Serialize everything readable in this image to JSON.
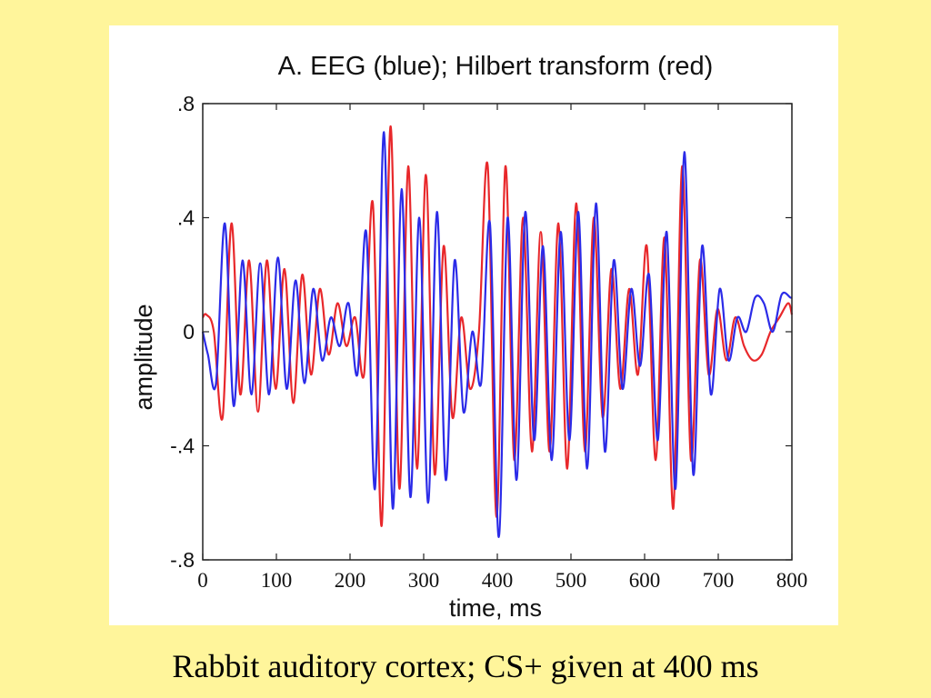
{
  "caption": "Rabbit auditory cortex; CS+ given at 400 ms",
  "chart_data": {
    "type": "line",
    "title": "A. EEG (blue);  Hilbert transform (red)",
    "xlabel": "time, ms",
    "ylabel": "amplitude",
    "xlim": [
      0,
      800
    ],
    "ylim": [
      -0.8,
      0.8
    ],
    "x_ticks": [
      0,
      100,
      200,
      300,
      400,
      500,
      600,
      700,
      800
    ],
    "x_tick_labels": [
      "0",
      "100",
      "200",
      "300",
      "400",
      "500",
      "600",
      "700",
      "800"
    ],
    "y_ticks": [
      0.8,
      0.4,
      0,
      -0.4,
      -0.8
    ],
    "y_tick_labels": [
      ".8",
      ".4",
      "0",
      "-.4",
      "-.8"
    ],
    "grid": false,
    "colors": {
      "eeg": "#2B2BE8",
      "hilbert": "#E8282B",
      "background": "#FFF59B"
    },
    "series": [
      {
        "key": "eeg",
        "color": "#2B2BE8",
        "x": [
          0,
          7,
          18,
          30,
          42,
          54,
          66,
          78,
          90,
          102,
          114,
          126,
          138,
          150,
          162,
          174,
          186,
          198,
          210,
          222,
          234,
          246,
          258,
          270,
          282,
          294,
          306,
          318,
          330,
          342,
          354,
          366,
          378,
          390,
          402,
          414,
          426,
          438,
          450,
          462,
          474,
          486,
          498,
          510,
          522,
          534,
          546,
          558,
          570,
          582,
          594,
          606,
          618,
          630,
          642,
          654,
          666,
          678,
          690,
          702,
          714,
          726,
          738,
          750,
          762,
          774,
          786,
          798,
          800
        ],
        "values": [
          0.0,
          -0.08,
          -0.18,
          0.38,
          -0.26,
          0.25,
          -0.22,
          0.24,
          -0.22,
          0.26,
          -0.2,
          0.18,
          -0.18,
          0.15,
          -0.1,
          0.05,
          -0.05,
          0.1,
          -0.15,
          0.35,
          -0.55,
          0.7,
          -0.62,
          0.5,
          -0.58,
          0.4,
          -0.6,
          0.42,
          -0.52,
          0.25,
          -0.28,
          0.0,
          -0.18,
          0.38,
          -0.72,
          0.4,
          -0.52,
          0.42,
          -0.38,
          0.3,
          -0.45,
          0.35,
          -0.38,
          0.42,
          -0.48,
          0.45,
          -0.42,
          0.25,
          -0.2,
          0.15,
          -0.12,
          0.2,
          -0.38,
          0.35,
          -0.55,
          0.63,
          -0.5,
          0.3,
          -0.22,
          0.15,
          -0.1,
          0.05,
          0.0,
          0.12,
          0.1,
          0.0,
          0.13,
          0.12,
          0.12
        ]
      },
      {
        "key": "hilbert",
        "color": "#E8282B",
        "x": [
          0,
          5,
          15,
          27,
          39,
          51,
          63,
          75,
          87,
          99,
          111,
          123,
          135,
          147,
          159,
          171,
          183,
          195,
          207,
          219,
          231,
          243,
          255,
          267,
          279,
          291,
          303,
          315,
          327,
          339,
          351,
          363,
          375,
          387,
          399,
          411,
          423,
          435,
          447,
          459,
          471,
          483,
          495,
          507,
          519,
          531,
          543,
          555,
          567,
          579,
          591,
          603,
          615,
          627,
          639,
          651,
          663,
          675,
          687,
          699,
          711,
          723,
          735,
          747,
          759,
          771,
          783,
          795,
          800
        ],
        "values": [
          0.05,
          0.06,
          0.0,
          -0.3,
          0.38,
          -0.22,
          0.25,
          -0.28,
          0.25,
          -0.2,
          0.22,
          -0.25,
          0.2,
          -0.15,
          0.15,
          -0.08,
          0.1,
          -0.05,
          0.05,
          -0.15,
          0.45,
          -0.68,
          0.72,
          -0.55,
          0.58,
          -0.48,
          0.55,
          -0.5,
          0.3,
          -0.3,
          0.05,
          -0.2,
          0.0,
          0.58,
          -0.65,
          0.58,
          -0.45,
          0.4,
          -0.42,
          0.35,
          -0.42,
          0.38,
          -0.48,
          0.45,
          -0.42,
          0.4,
          -0.3,
          0.22,
          -0.2,
          0.15,
          -0.15,
          0.3,
          -0.45,
          0.33,
          -0.62,
          0.58,
          -0.45,
          0.25,
          -0.15,
          0.08,
          -0.1,
          0.05,
          -0.05,
          -0.1,
          -0.08,
          0.0,
          0.05,
          0.1,
          0.06
        ]
      }
    ]
  }
}
